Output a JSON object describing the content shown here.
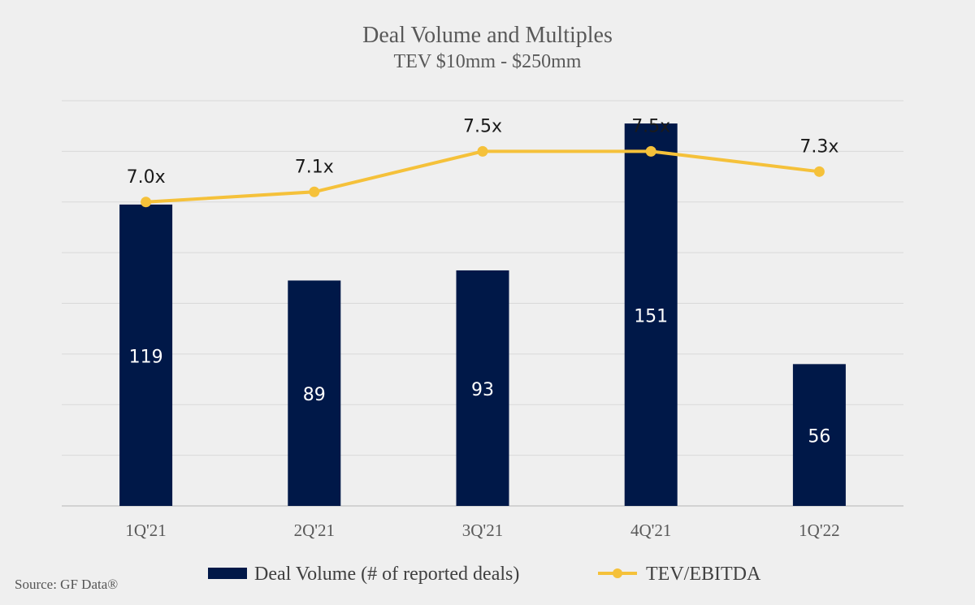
{
  "chart_data": {
    "type": "bar",
    "title": "Deal Volume and Multiples",
    "subtitle": "TEV $10mm - $250mm",
    "categories": [
      "1Q'21",
      "2Q'21",
      "3Q'21",
      "4Q'21",
      "1Q'22"
    ],
    "series": [
      {
        "name": "Deal Volume (# of reported deals)",
        "type": "bar",
        "axis": "left",
        "values": [
          119,
          89,
          93,
          151,
          56
        ],
        "labels": [
          "119",
          "89",
          "93",
          "151",
          "56"
        ],
        "color": "#001848"
      },
      {
        "name": "TEV/EBITDA",
        "type": "line",
        "axis": "right",
        "values": [
          7.0,
          7.1,
          7.5,
          7.5,
          7.3
        ],
        "labels": [
          "7.0x",
          "7.1x",
          "7.5x",
          "7.5x",
          "7.3x"
        ],
        "color": "#f5c13a"
      }
    ],
    "ylim_left": [
      0,
      160
    ],
    "ylim_right": [
      4.0,
      8.0
    ],
    "gridlines": true,
    "legend": "bottom-center",
    "source": "Source: GF Data®"
  }
}
